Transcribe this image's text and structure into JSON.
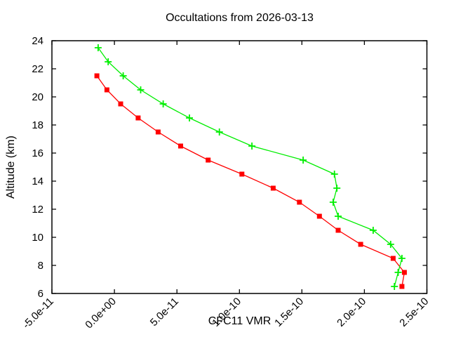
{
  "chart_data": {
    "type": "line",
    "title": "Occultations from 2026-03-13",
    "xlabel": "CFC11 VMR",
    "ylabel": "Altitude (km)",
    "xlim": [
      -5e-11,
      2.5e-10
    ],
    "ylim": [
      6,
      24
    ],
    "grid": false,
    "legend": "none",
    "border_color": "#000000",
    "x_ticks": {
      "values": [
        -5e-11,
        0,
        5e-11,
        1e-10,
        1.5e-10,
        2e-10,
        2.5e-10
      ],
      "labels": [
        "-5.0e-11",
        "0.0e+00",
        "5.0e-11",
        "1.0e-10",
        "1.5e-10",
        "2.0e-10",
        "2.5e-10"
      ],
      "rotation_deg": -45
    },
    "y_ticks": {
      "values": [
        6,
        8,
        10,
        12,
        14,
        16,
        18,
        20,
        22,
        24
      ],
      "labels": [
        "6",
        "8",
        "10",
        "12",
        "14",
        "16",
        "18",
        "20",
        "22",
        "24"
      ]
    },
    "series": [
      {
        "name": "red-squares",
        "color": "#ff0000",
        "marker": "square",
        "points_vmr_alt": [
          [
            -1.4e-11,
            21.5
          ],
          [
            -6e-12,
            20.5
          ],
          [
            5e-12,
            19.5
          ],
          [
            1.9e-11,
            18.5
          ],
          [
            3.5e-11,
            17.5
          ],
          [
            5.3e-11,
            16.5
          ],
          [
            7.5e-11,
            15.5
          ],
          [
            1.02e-10,
            14.5
          ],
          [
            1.27e-10,
            13.5
          ],
          [
            1.48e-10,
            12.5
          ],
          [
            1.64e-10,
            11.5
          ],
          [
            1.79e-10,
            10.5
          ],
          [
            1.97e-10,
            9.5
          ],
          [
            2.23e-10,
            8.5
          ],
          [
            2.32e-10,
            7.5
          ],
          [
            2.3e-10,
            6.5
          ]
        ]
      },
      {
        "name": "green-plus",
        "color": "#00ee00",
        "marker": "plus",
        "points_vmr_alt": [
          [
            -1.3e-11,
            23.5
          ],
          [
            -5e-12,
            22.5
          ],
          [
            7e-12,
            21.5
          ],
          [
            2.1e-11,
            20.5
          ],
          [
            3.9e-11,
            19.5
          ],
          [
            6e-11,
            18.5
          ],
          [
            8.4e-11,
            17.5
          ],
          [
            1.1e-10,
            16.5
          ],
          [
            1.51e-10,
            15.5
          ],
          [
            1.76e-10,
            14.5
          ],
          [
            1.78e-10,
            13.5
          ],
          [
            1.75e-10,
            12.5
          ],
          [
            1.79e-10,
            11.5
          ],
          [
            2.07e-10,
            10.5
          ],
          [
            2.21e-10,
            9.5
          ],
          [
            2.3e-10,
            8.5
          ],
          [
            2.27e-10,
            7.5
          ],
          [
            2.24e-10,
            6.5
          ]
        ]
      }
    ]
  }
}
